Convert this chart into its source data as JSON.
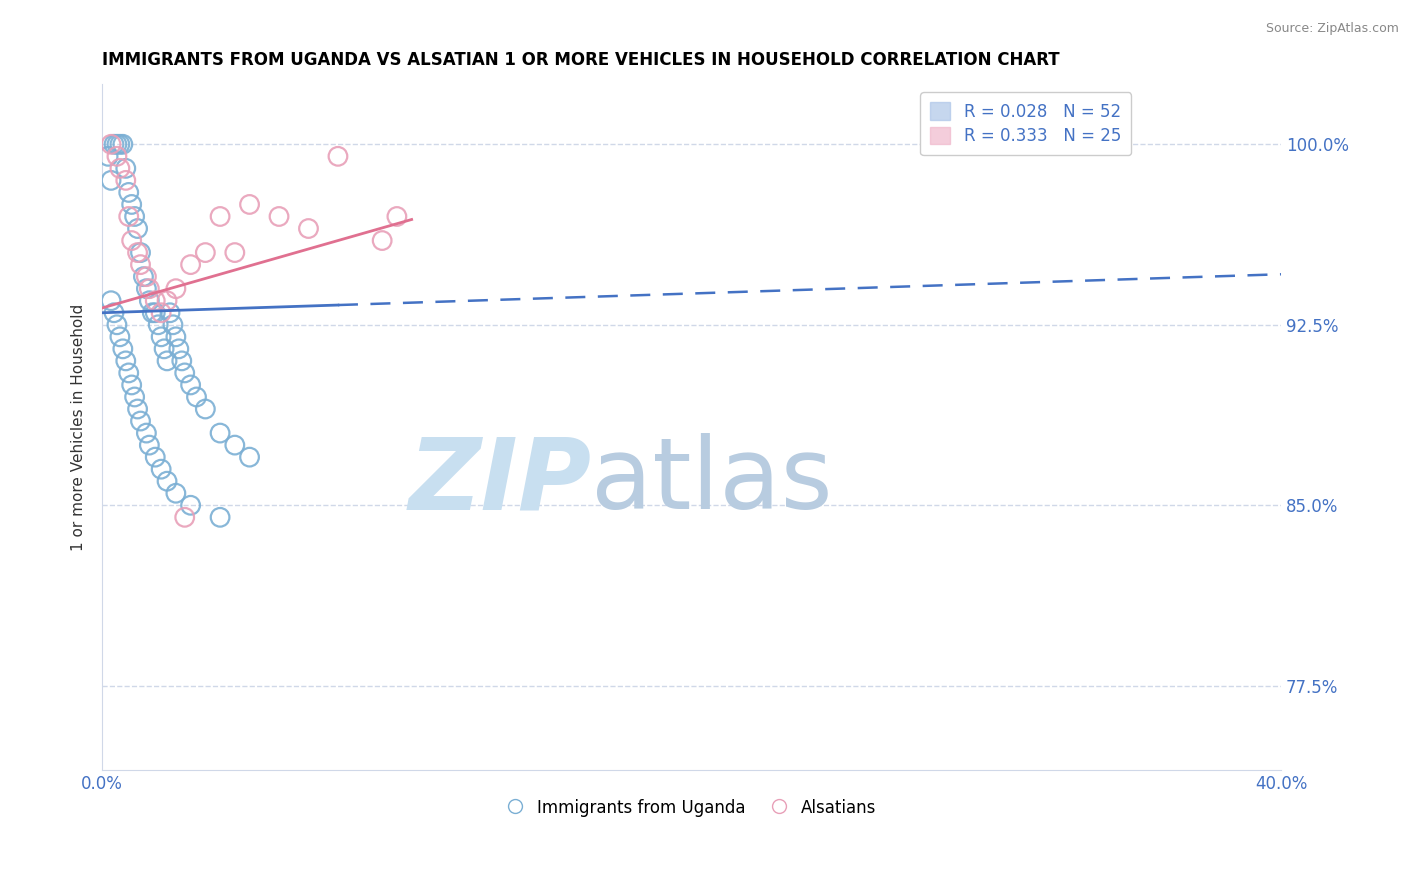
{
  "title": "IMMIGRANTS FROM UGANDA VS ALSATIAN 1 OR MORE VEHICLES IN HOUSEHOLD CORRELATION CHART",
  "source": "Source: ZipAtlas.com",
  "ylabel": "1 or more Vehicles in Household",
  "ytick_labels": [
    "77.5%",
    "85.0%",
    "92.5%",
    "100.0%"
  ],
  "ytick_values": [
    77.5,
    85.0,
    92.5,
    100.0
  ],
  "xmin": 0.0,
  "xmax": 40.0,
  "ymin": 74.0,
  "ymax": 102.5,
  "legend_entry1": "R = 0.028   N = 52",
  "legend_entry2": "R = 0.333   N = 25",
  "legend_label1": "Immigrants from Uganda",
  "legend_label2": "Alsatians",
  "scatter_blue_x": [
    0.2,
    0.3,
    0.4,
    0.5,
    0.6,
    0.7,
    0.8,
    0.9,
    1.0,
    1.1,
    1.2,
    1.3,
    1.4,
    1.5,
    1.6,
    1.7,
    1.8,
    1.9,
    2.0,
    2.1,
    2.2,
    2.3,
    2.4,
    2.5,
    2.6,
    2.7,
    2.8,
    3.0,
    3.2,
    3.5,
    4.0,
    4.5,
    5.0,
    0.3,
    0.4,
    0.5,
    0.6,
    0.7,
    0.8,
    0.9,
    1.0,
    1.1,
    1.2,
    1.3,
    1.5,
    1.6,
    1.8,
    2.0,
    2.2,
    2.5,
    3.0,
    4.0
  ],
  "scatter_blue_y": [
    99.5,
    98.5,
    100.0,
    100.0,
    100.0,
    100.0,
    99.0,
    98.0,
    97.5,
    97.0,
    96.5,
    95.5,
    94.5,
    94.0,
    93.5,
    93.0,
    93.0,
    92.5,
    92.0,
    91.5,
    91.0,
    93.0,
    92.5,
    92.0,
    91.5,
    91.0,
    90.5,
    90.0,
    89.5,
    89.0,
    88.0,
    87.5,
    87.0,
    93.5,
    93.0,
    92.5,
    92.0,
    91.5,
    91.0,
    90.5,
    90.0,
    89.5,
    89.0,
    88.5,
    88.0,
    87.5,
    87.0,
    86.5,
    86.0,
    85.5,
    85.0,
    84.5
  ],
  "scatter_pink_x": [
    0.3,
    0.5,
    0.6,
    0.8,
    0.9,
    1.0,
    1.2,
    1.3,
    1.5,
    1.6,
    1.8,
    2.0,
    2.2,
    2.5,
    2.8,
    3.0,
    3.5,
    4.0,
    4.5,
    5.0,
    6.0,
    7.0,
    8.0,
    9.5,
    10.0
  ],
  "scatter_pink_y": [
    100.0,
    99.5,
    99.0,
    98.5,
    97.0,
    96.0,
    95.5,
    95.0,
    94.5,
    94.0,
    93.5,
    93.0,
    93.5,
    94.0,
    84.5,
    95.0,
    95.5,
    97.0,
    95.5,
    97.5,
    97.0,
    96.5,
    99.5,
    96.0,
    97.0
  ],
  "color_blue": "#7bafd4",
  "color_pink": "#e8a0b8",
  "color_line_blue": "#4472c4",
  "color_line_pink": "#e07090",
  "watermark_zip": "ZIP",
  "watermark_atlas": "atlas",
  "watermark_color_zip": "#c8dff0",
  "watermark_color_atlas": "#b8cce0"
}
